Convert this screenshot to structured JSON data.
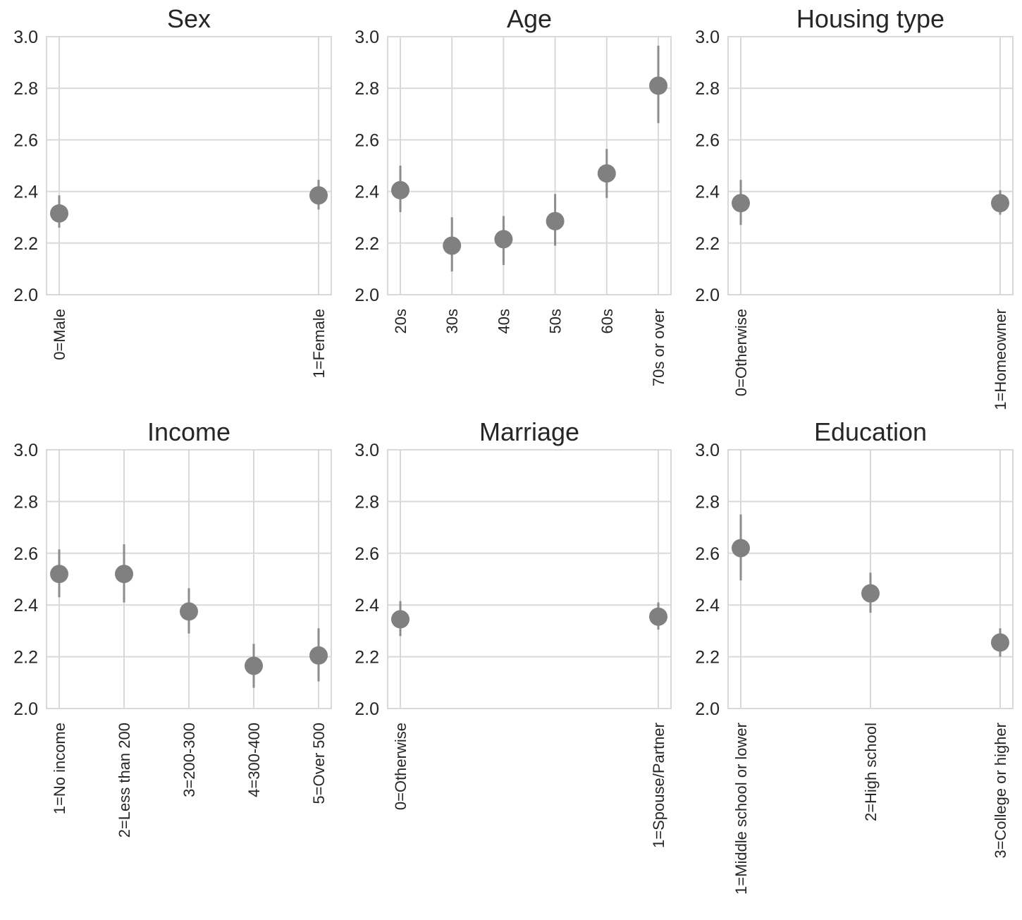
{
  "chart_data": [
    {
      "type": "scatter",
      "title": "Sex",
      "categories": [
        "0=Male",
        "1=Female"
      ],
      "values": [
        2.315,
        2.385
      ],
      "ci_low": [
        2.26,
        2.33
      ],
      "ci_high": [
        2.385,
        2.445
      ],
      "ylim": [
        2.0,
        3.0
      ],
      "yticks": [
        "2.0",
        "2.2",
        "2.4",
        "2.6",
        "2.8",
        "3.0"
      ],
      "grid": true
    },
    {
      "type": "scatter",
      "title": "Age",
      "categories": [
        "20s",
        "30s",
        "40s",
        "50s",
        "60s",
        "70s or over"
      ],
      "values": [
        2.405,
        2.19,
        2.215,
        2.285,
        2.47,
        2.81
      ],
      "ci_low": [
        2.32,
        2.09,
        2.115,
        2.19,
        2.375,
        2.665
      ],
      "ci_high": [
        2.5,
        2.3,
        2.305,
        2.39,
        2.565,
        2.965
      ],
      "ylim": [
        2.0,
        3.0
      ],
      "yticks": [
        "2.0",
        "2.2",
        "2.4",
        "2.6",
        "2.8",
        "3.0"
      ],
      "grid": true
    },
    {
      "type": "scatter",
      "title": "Housing type",
      "categories": [
        "0=Otherwise",
        "1=Homeowner"
      ],
      "values": [
        2.355,
        2.355
      ],
      "ci_low": [
        2.27,
        2.31
      ],
      "ci_high": [
        2.445,
        2.405
      ],
      "ylim": [
        2.0,
        3.0
      ],
      "yticks": [
        "2.0",
        "2.2",
        "2.4",
        "2.6",
        "2.8",
        "3.0"
      ],
      "grid": true
    },
    {
      "type": "scatter",
      "title": "Income",
      "categories": [
        "1=No income",
        "2=Less than 200",
        "3=200-300",
        "4=300-400",
        "5=Over 500"
      ],
      "values": [
        2.52,
        2.52,
        2.375,
        2.165,
        2.205
      ],
      "ci_low": [
        2.43,
        2.41,
        2.29,
        2.08,
        2.105
      ],
      "ci_high": [
        2.615,
        2.635,
        2.465,
        2.25,
        2.31
      ],
      "ylim": [
        2.0,
        3.0
      ],
      "yticks": [
        "2.0",
        "2.2",
        "2.4",
        "2.6",
        "2.8",
        "3.0"
      ],
      "grid": true
    },
    {
      "type": "scatter",
      "title": "Marriage",
      "categories": [
        "0=Otherwise",
        "1=Spouse/Partner"
      ],
      "values": [
        2.345,
        2.355
      ],
      "ci_low": [
        2.28,
        2.305
      ],
      "ci_high": [
        2.415,
        2.41
      ],
      "ylim": [
        2.0,
        3.0
      ],
      "yticks": [
        "2.0",
        "2.2",
        "2.4",
        "2.6",
        "2.8",
        "3.0"
      ],
      "grid": true
    },
    {
      "type": "scatter",
      "title": "Education",
      "categories": [
        "1=Middle school or lower",
        "2=High school",
        "3=College or higher"
      ],
      "values": [
        2.62,
        2.445,
        2.255
      ],
      "ci_low": [
        2.495,
        2.37,
        2.2
      ],
      "ci_high": [
        2.75,
        2.525,
        2.31
      ],
      "ylim": [
        2.0,
        3.0
      ],
      "yticks": [
        "2.0",
        "2.2",
        "2.4",
        "2.6",
        "2.8",
        "3.0"
      ],
      "grid": true
    }
  ],
  "colors": {
    "point": "#808080",
    "error_bar": "#8c8c8c",
    "grid": "#d9d9d9",
    "text": "#262626"
  }
}
